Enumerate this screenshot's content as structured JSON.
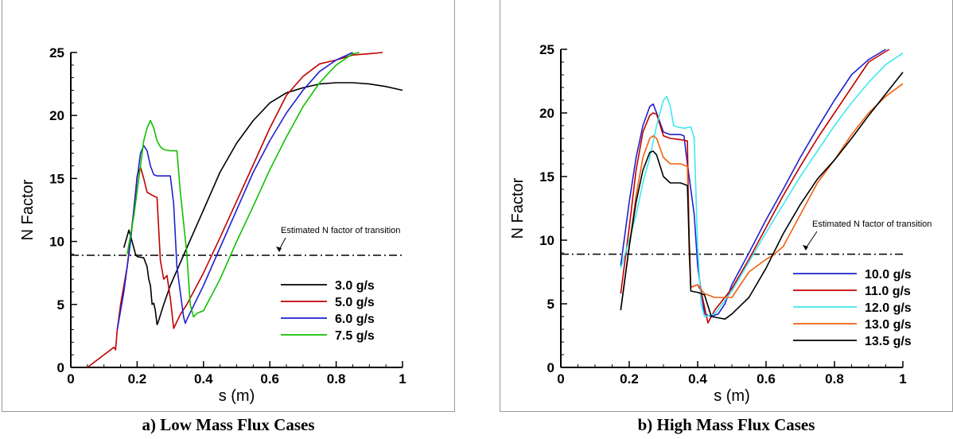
{
  "chart_data": [
    {
      "type": "line",
      "caption": "a) Low Mass Flux Cases",
      "xlabel": "s (m)",
      "ylabel": "N Factor",
      "xlim": [
        0,
        1
      ],
      "ylim": [
        0,
        25
      ],
      "xticks": [
        0,
        0.2,
        0.4,
        0.6,
        0.8,
        1
      ],
      "xtick_labels": [
        "0",
        "0.2",
        "0.4",
        "0.6",
        "0.8",
        "1"
      ],
      "yticks": [
        0,
        5,
        10,
        15,
        20,
        25
      ],
      "ytick_labels": [
        "0",
        "5",
        "10",
        "15",
        "20",
        "25"
      ],
      "grid": false,
      "legend_position": "lower-right",
      "reference_line": {
        "y": 8.9,
        "style": "dash-dot",
        "label": "Estimated N factor of transition"
      },
      "series": [
        {
          "name": "3.0 g/s",
          "color": "#000000",
          "x": [
            0.16,
            0.175,
            0.185,
            0.195,
            0.2,
            0.22,
            0.23,
            0.235,
            0.24,
            0.245,
            0.25,
            0.255,
            0.26,
            0.262,
            0.28,
            0.3,
            0.35,
            0.4,
            0.45,
            0.5,
            0.55,
            0.6,
            0.65,
            0.7,
            0.75,
            0.8,
            0.85,
            0.9,
            0.95,
            1.0
          ],
          "y": [
            9.5,
            10.9,
            10.0,
            9.0,
            8.8,
            8.7,
            8.0,
            7.0,
            6.5,
            5.0,
            5.1,
            4.5,
            3.4,
            3.5,
            5.0,
            6.5,
            9.5,
            12.5,
            15.5,
            17.8,
            19.6,
            21.0,
            21.8,
            22.2,
            22.5,
            22.6,
            22.6,
            22.5,
            22.3,
            22.0
          ]
        },
        {
          "name": "5.0 g/s",
          "color": "#c00000",
          "x": [
            0.05,
            0.13,
            0.135,
            0.14,
            0.15,
            0.17,
            0.19,
            0.2,
            0.21,
            0.22,
            0.23,
            0.25,
            0.26,
            0.27,
            0.28,
            0.29,
            0.3,
            0.31,
            0.33,
            0.35,
            0.4,
            0.45,
            0.5,
            0.55,
            0.6,
            0.65,
            0.7,
            0.75,
            0.8,
            0.85,
            0.9,
            0.94
          ],
          "y": [
            0,
            1.6,
            1.4,
            3.0,
            5.0,
            8.0,
            12.5,
            15.2,
            15.9,
            15.0,
            13.9,
            13.6,
            13.5,
            8.5,
            7.0,
            7.3,
            5.5,
            3.1,
            4.2,
            5.0,
            7.5,
            10.3,
            13.2,
            16.1,
            19.0,
            21.6,
            23.1,
            24.1,
            24.4,
            24.8,
            24.9,
            25.0
          ]
        },
        {
          "name": "6.0 g/s",
          "color": "#2020d0",
          "x": [
            0.14,
            0.16,
            0.18,
            0.2,
            0.21,
            0.22,
            0.23,
            0.24,
            0.25,
            0.26,
            0.3,
            0.31,
            0.32,
            0.34,
            0.345,
            0.35,
            0.4,
            0.45,
            0.5,
            0.55,
            0.6,
            0.65,
            0.7,
            0.75,
            0.8,
            0.85
          ],
          "y": [
            3.0,
            6.0,
            10.0,
            15.0,
            17.0,
            17.6,
            17.2,
            16.0,
            15.3,
            15.2,
            15.2,
            13.0,
            8.0,
            4.0,
            3.5,
            3.8,
            6.5,
            9.5,
            12.5,
            15.5,
            18.0,
            20.2,
            22.0,
            23.5,
            24.4,
            25.0
          ]
        },
        {
          "name": "7.5 g/s",
          "color": "#10c000",
          "x": [
            0.17,
            0.18,
            0.19,
            0.2,
            0.21,
            0.22,
            0.23,
            0.24,
            0.25,
            0.26,
            0.27,
            0.28,
            0.3,
            0.32,
            0.33,
            0.35,
            0.36,
            0.37,
            0.38,
            0.4,
            0.45,
            0.5,
            0.55,
            0.6,
            0.65,
            0.7,
            0.75,
            0.8,
            0.85,
            0.87
          ],
          "y": [
            9.0,
            10.5,
            12.0,
            14.0,
            16.0,
            18.0,
            19.0,
            19.6,
            19.0,
            18.0,
            17.5,
            17.3,
            17.2,
            17.2,
            14.0,
            9.0,
            5.0,
            4.0,
            4.3,
            4.5,
            7.0,
            10.0,
            12.8,
            15.7,
            18.3,
            20.7,
            22.6,
            24.0,
            24.9,
            25.0
          ]
        }
      ]
    },
    {
      "type": "line",
      "caption": "b) High Mass Flux Cases",
      "xlabel": "s (m)",
      "ylabel": "N Factor",
      "xlim": [
        0,
        1
      ],
      "ylim": [
        0,
        25
      ],
      "xticks": [
        0,
        0.2,
        0.4,
        0.6,
        0.8,
        1
      ],
      "xtick_labels": [
        "0",
        "0.2",
        "0.4",
        "0.6",
        "0.8",
        "1"
      ],
      "yticks": [
        0,
        5,
        10,
        15,
        20,
        25
      ],
      "ytick_labels": [
        "0",
        "5",
        "10",
        "15",
        "20",
        "25"
      ],
      "grid": false,
      "legend_position": "lower-right",
      "reference_line": {
        "y": 8.9,
        "style": "dash-dot",
        "label": "Estimated N factor of transition"
      },
      "series": [
        {
          "name": "10.0 g/s",
          "color": "#2020d0",
          "x": [
            0.175,
            0.2,
            0.22,
            0.24,
            0.26,
            0.27,
            0.28,
            0.3,
            0.32,
            0.35,
            0.36,
            0.37,
            0.38,
            0.39,
            0.4,
            0.41,
            0.42,
            0.44,
            0.46,
            0.48,
            0.5,
            0.55,
            0.6,
            0.65,
            0.7,
            0.75,
            0.8,
            0.85,
            0.9,
            0.95
          ],
          "y": [
            8.0,
            13.0,
            16.5,
            19.0,
            20.5,
            20.7,
            20.0,
            18.5,
            18.3,
            18.3,
            18.2,
            16.0,
            14.0,
            12.0,
            8.0,
            6.0,
            4.2,
            4.0,
            4.2,
            5.0,
            6.5,
            9.0,
            11.6,
            14.0,
            16.5,
            18.8,
            21.0,
            23.0,
            24.2,
            25.0
          ]
        },
        {
          "name": "11.0 g/s",
          "color": "#c00000",
          "x": [
            0.175,
            0.2,
            0.22,
            0.24,
            0.26,
            0.27,
            0.28,
            0.3,
            0.32,
            0.35,
            0.37,
            0.375,
            0.38,
            0.4,
            0.41,
            0.43,
            0.45,
            0.5,
            0.55,
            0.6,
            0.65,
            0.7,
            0.75,
            0.8,
            0.85,
            0.9,
            0.96
          ],
          "y": [
            5.8,
            11.0,
            15.5,
            18.5,
            19.8,
            20.0,
            19.9,
            18.2,
            18.0,
            17.9,
            17.8,
            10.0,
            6.3,
            6.5,
            6.0,
            3.5,
            4.5,
            6.2,
            8.5,
            11.0,
            13.5,
            15.8,
            18.0,
            20.0,
            22.0,
            24.0,
            25.0
          ]
        },
        {
          "name": "12.0 g/s",
          "color": "#40e8f0",
          "x": [
            0.175,
            0.2,
            0.22,
            0.24,
            0.26,
            0.28,
            0.3,
            0.31,
            0.32,
            0.33,
            0.34,
            0.36,
            0.38,
            0.39,
            0.4,
            0.41,
            0.42,
            0.45,
            0.5,
            0.55,
            0.6,
            0.65,
            0.7,
            0.75,
            0.8,
            0.85,
            0.9,
            0.95,
            1.0
          ],
          "y": [
            7.8,
            10.0,
            12.0,
            14.5,
            16.5,
            19.0,
            21.0,
            21.3,
            20.5,
            19.0,
            18.9,
            18.8,
            18.9,
            18.0,
            9.5,
            5.0,
            4.0,
            4.2,
            6.0,
            8.3,
            10.6,
            12.8,
            15.0,
            17.0,
            19.0,
            20.8,
            22.4,
            23.8,
            24.7
          ]
        },
        {
          "name": "13.0 g/s",
          "color": "#f06010",
          "x": [
            0.175,
            0.2,
            0.22,
            0.24,
            0.26,
            0.27,
            0.28,
            0.3,
            0.32,
            0.35,
            0.37,
            0.375,
            0.38,
            0.4,
            0.42,
            0.45,
            0.5,
            0.55,
            0.6,
            0.62,
            0.65,
            0.7,
            0.75,
            0.8,
            0.85,
            0.9,
            0.95,
            1.0
          ],
          "y": [
            4.5,
            9.5,
            13.5,
            16.5,
            18.0,
            18.2,
            18.0,
            16.5,
            16.0,
            16.0,
            15.8,
            9.0,
            6.3,
            6.5,
            5.8,
            5.5,
            5.5,
            7.5,
            8.5,
            8.8,
            9.5,
            12.0,
            14.5,
            16.3,
            18.3,
            20.0,
            21.3,
            22.3
          ]
        },
        {
          "name": "13.5 g/s",
          "color": "#000000",
          "x": [
            0.175,
            0.2,
            0.22,
            0.24,
            0.26,
            0.27,
            0.28,
            0.3,
            0.32,
            0.35,
            0.37,
            0.375,
            0.38,
            0.4,
            0.42,
            0.44,
            0.46,
            0.48,
            0.5,
            0.55,
            0.6,
            0.65,
            0.7,
            0.75,
            0.8,
            0.85,
            0.9,
            0.95,
            1.0
          ],
          "y": [
            4.5,
            9.5,
            13.0,
            15.5,
            16.9,
            17.0,
            16.7,
            15.0,
            14.5,
            14.5,
            14.3,
            10.0,
            6.0,
            5.9,
            5.7,
            4.0,
            3.9,
            3.8,
            4.2,
            5.5,
            7.8,
            10.5,
            12.8,
            14.8,
            16.3,
            18.0,
            19.8,
            21.5,
            23.2
          ]
        }
      ]
    }
  ]
}
